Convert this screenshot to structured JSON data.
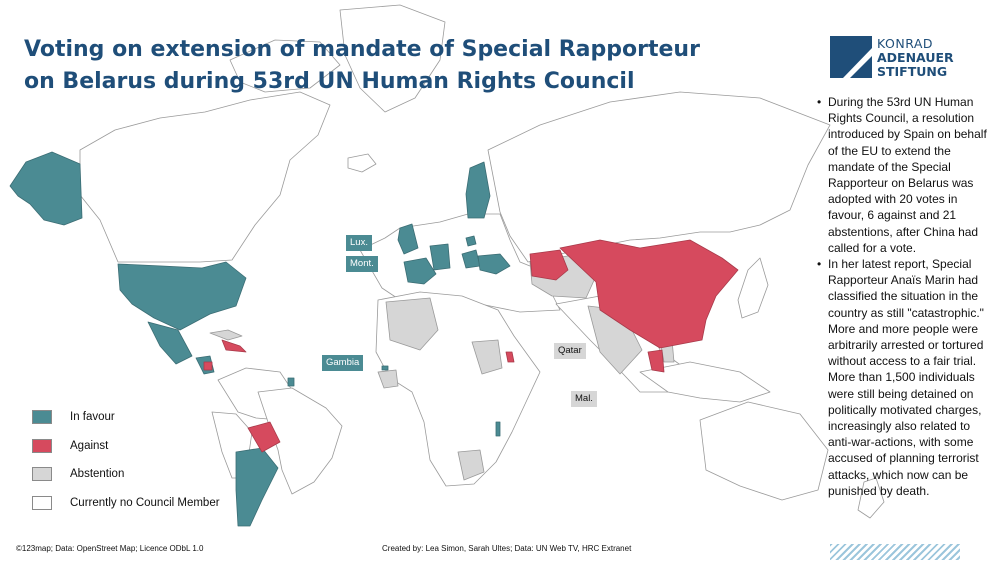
{
  "title": {
    "line1": "Voting on extension of mandate of Special Rapporteur",
    "line2": "on Belarus during 53rd UN Human Rights Council"
  },
  "logo": {
    "line1": "KONRAD",
    "line2": "ADENAUER",
    "line3": "STIFTUNG",
    "color": "#1f4e79"
  },
  "bullets": [
    "During the 53rd UN Human Rights Council, a resolution introduced by Spain on behalf of the EU to extend the mandate of the Special Rapporteur on Belarus was adopted with 20 votes in favour, 6 against and 21 abstentions, after China had called for a vote.",
    "In her latest report, Special Rapporteur Anaïs Marin had classified the situation in the country as still \"catastrophic.\" More and more people were arbitrarily arrested or tortured without access to a fair trial. More than 1,500 individuals were still being detained on politically motivated charges, increasingly also related to anti-war-actions, with some accused of planning terrorist attacks, which now can be punished by death."
  ],
  "legend": [
    {
      "label": "In favour",
      "color": "#4b8b93"
    },
    {
      "label": "Against",
      "color": "#d64a5e"
    },
    {
      "label": "Abstention",
      "color": "#d6d6d6"
    },
    {
      "label": "Currently no Council Member",
      "color": "#ffffff"
    }
  ],
  "map_labels": {
    "lux": "Lux.",
    "mont": "Mont.",
    "gambia": "Gambia",
    "qatar": "Qatar",
    "mal": "Mal."
  },
  "credits": {
    "left": "©123map; Data: OpenStreet Map; Licence ODbL 1.0",
    "center": "Created by: Lea Simon, Sarah Ultes; Data: UN Web TV, HRC Extranet"
  },
  "colors": {
    "favour": "#4b8b93",
    "against": "#d64a5e",
    "abstention": "#d6d6d6",
    "none": "#ffffff",
    "border": "#8a8a8a",
    "title": "#1f4e79"
  }
}
